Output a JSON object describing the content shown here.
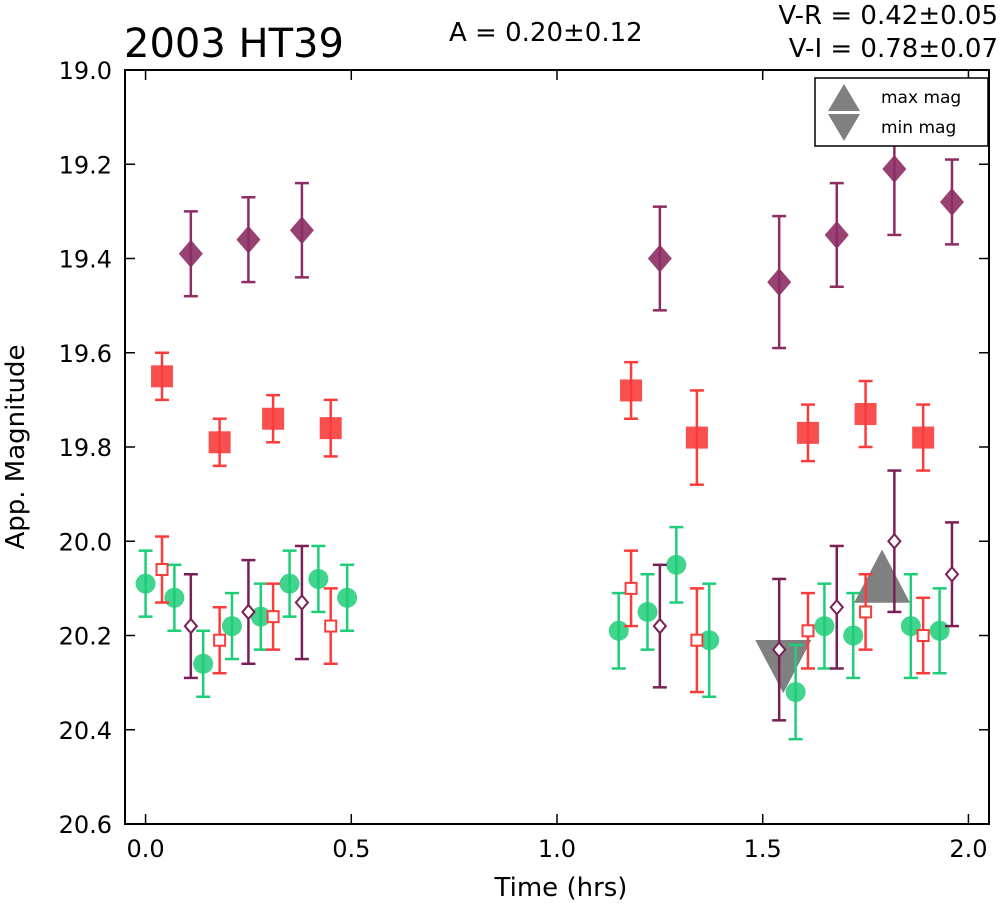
{
  "chart_data": {
    "type": "scatter",
    "title": "2003 HT39",
    "annotations": {
      "amplitude": "A  = 0.20±0.12",
      "v_minus_r": "V-R = 0.42±0.05",
      "v_minus_i": "V-I  = 0.78±0.07"
    },
    "xlabel": "Time (hrs)",
    "ylabel": "App. Magnitude",
    "xlim": [
      -0.05,
      2.05
    ],
    "ylim": [
      20.6,
      19.0
    ],
    "y_inverted": true,
    "xticks": [
      "0.0",
      "0.5",
      "1.0",
      "1.5",
      "2.0"
    ],
    "yticks": [
      "19.0",
      "19.2",
      "19.4",
      "19.6",
      "19.8",
      "20.0",
      "20.2",
      "20.4",
      "20.6"
    ],
    "xtick_values": [
      0.0,
      0.5,
      1.0,
      1.5,
      2.0
    ],
    "ytick_values": [
      19.0,
      19.2,
      19.4,
      19.6,
      19.8,
      20.0,
      20.2,
      20.4,
      20.6
    ],
    "legend": {
      "placement": "top-right",
      "entries": [
        {
          "label": "max mag",
          "marker": "triangle-up",
          "color": "#808080"
        },
        {
          "label": "min mag",
          "marker": "triangle-down",
          "color": "#808080"
        }
      ]
    },
    "series": [
      {
        "marker": "circle-filled",
        "color": "#1ecd78",
        "points": [
          {
            "x": 0.0,
            "y": 20.09,
            "err": 0.07
          },
          {
            "x": 0.07,
            "y": 20.12,
            "err": 0.07
          },
          {
            "x": 0.14,
            "y": 20.26,
            "err": 0.07
          },
          {
            "x": 0.21,
            "y": 20.18,
            "err": 0.07
          },
          {
            "x": 0.28,
            "y": 20.16,
            "err": 0.07
          },
          {
            "x": 0.35,
            "y": 20.09,
            "err": 0.07
          },
          {
            "x": 0.42,
            "y": 20.08,
            "err": 0.07
          },
          {
            "x": 0.49,
            "y": 20.12,
            "err": 0.07
          },
          {
            "x": 1.15,
            "y": 20.19,
            "err": 0.08
          },
          {
            "x": 1.22,
            "y": 20.15,
            "err": 0.08
          },
          {
            "x": 1.29,
            "y": 20.05,
            "err": 0.08
          },
          {
            "x": 1.37,
            "y": 20.21,
            "err": 0.12
          },
          {
            "x": 1.58,
            "y": 20.32,
            "err": 0.1
          },
          {
            "x": 1.65,
            "y": 20.18,
            "err": 0.09
          },
          {
            "x": 1.72,
            "y": 20.2,
            "err": 0.09
          },
          {
            "x": 1.86,
            "y": 20.18,
            "err": 0.11
          },
          {
            "x": 1.93,
            "y": 20.19,
            "err": 0.09
          }
        ]
      },
      {
        "marker": "square-filled",
        "color": "#fa3c3c",
        "points": [
          {
            "x": 0.04,
            "y": 19.65,
            "err": 0.05
          },
          {
            "x": 0.18,
            "y": 19.79,
            "err": 0.05
          },
          {
            "x": 0.31,
            "y": 19.74,
            "err": 0.05
          },
          {
            "x": 0.45,
            "y": 19.76,
            "err": 0.06
          },
          {
            "x": 1.18,
            "y": 19.68,
            "err": 0.06
          },
          {
            "x": 1.34,
            "y": 19.78,
            "err": 0.1
          },
          {
            "x": 1.61,
            "y": 19.77,
            "err": 0.06
          },
          {
            "x": 1.75,
            "y": 19.73,
            "err": 0.07
          },
          {
            "x": 1.89,
            "y": 19.78,
            "err": 0.07
          }
        ]
      },
      {
        "marker": "diamond-filled",
        "color": "#8c2d64",
        "points": [
          {
            "x": 0.11,
            "y": 19.39,
            "err": 0.09
          },
          {
            "x": 0.25,
            "y": 19.36,
            "err": 0.09
          },
          {
            "x": 0.38,
            "y": 19.34,
            "err": 0.1
          },
          {
            "x": 1.25,
            "y": 19.4,
            "err": 0.11
          },
          {
            "x": 1.54,
            "y": 19.45,
            "err": 0.14
          },
          {
            "x": 1.68,
            "y": 19.35,
            "err": 0.11
          },
          {
            "x": 1.82,
            "y": 19.21,
            "err": 0.14
          },
          {
            "x": 1.96,
            "y": 19.28,
            "err": 0.09
          }
        ]
      },
      {
        "marker": "square-open",
        "color": "#fa3c3c",
        "points": [
          {
            "x": 0.04,
            "y": 20.06,
            "err": 0.07
          },
          {
            "x": 0.18,
            "y": 20.21,
            "err": 0.07
          },
          {
            "x": 0.31,
            "y": 20.16,
            "err": 0.07
          },
          {
            "x": 0.45,
            "y": 20.18,
            "err": 0.08
          },
          {
            "x": 1.18,
            "y": 20.1,
            "err": 0.08
          },
          {
            "x": 1.34,
            "y": 20.21,
            "err": 0.11
          },
          {
            "x": 1.61,
            "y": 20.19,
            "err": 0.08
          },
          {
            "x": 1.75,
            "y": 20.15,
            "err": 0.08
          },
          {
            "x": 1.89,
            "y": 20.2,
            "err": 0.08
          }
        ]
      },
      {
        "marker": "diamond-open",
        "color": "#7a1f55",
        "points": [
          {
            "x": 0.11,
            "y": 20.18,
            "err": 0.11
          },
          {
            "x": 0.25,
            "y": 20.15,
            "err": 0.11
          },
          {
            "x": 0.38,
            "y": 20.13,
            "err": 0.12
          },
          {
            "x": 1.25,
            "y": 20.18,
            "err": 0.13
          },
          {
            "x": 1.54,
            "y": 20.23,
            "err": 0.15
          },
          {
            "x": 1.68,
            "y": 20.14,
            "err": 0.13
          },
          {
            "x": 1.82,
            "y": 20.0,
            "err": 0.15
          },
          {
            "x": 1.96,
            "y": 20.07,
            "err": 0.11
          }
        ]
      }
    ],
    "extrema_markers": [
      {
        "label": "max mag",
        "marker": "triangle-up",
        "color": "#808080",
        "x": 1.79,
        "y": 20.08
      },
      {
        "label": "min mag",
        "marker": "triangle-down",
        "color": "#808080",
        "x": 1.55,
        "y": 20.26
      }
    ],
    "grid": false
  }
}
